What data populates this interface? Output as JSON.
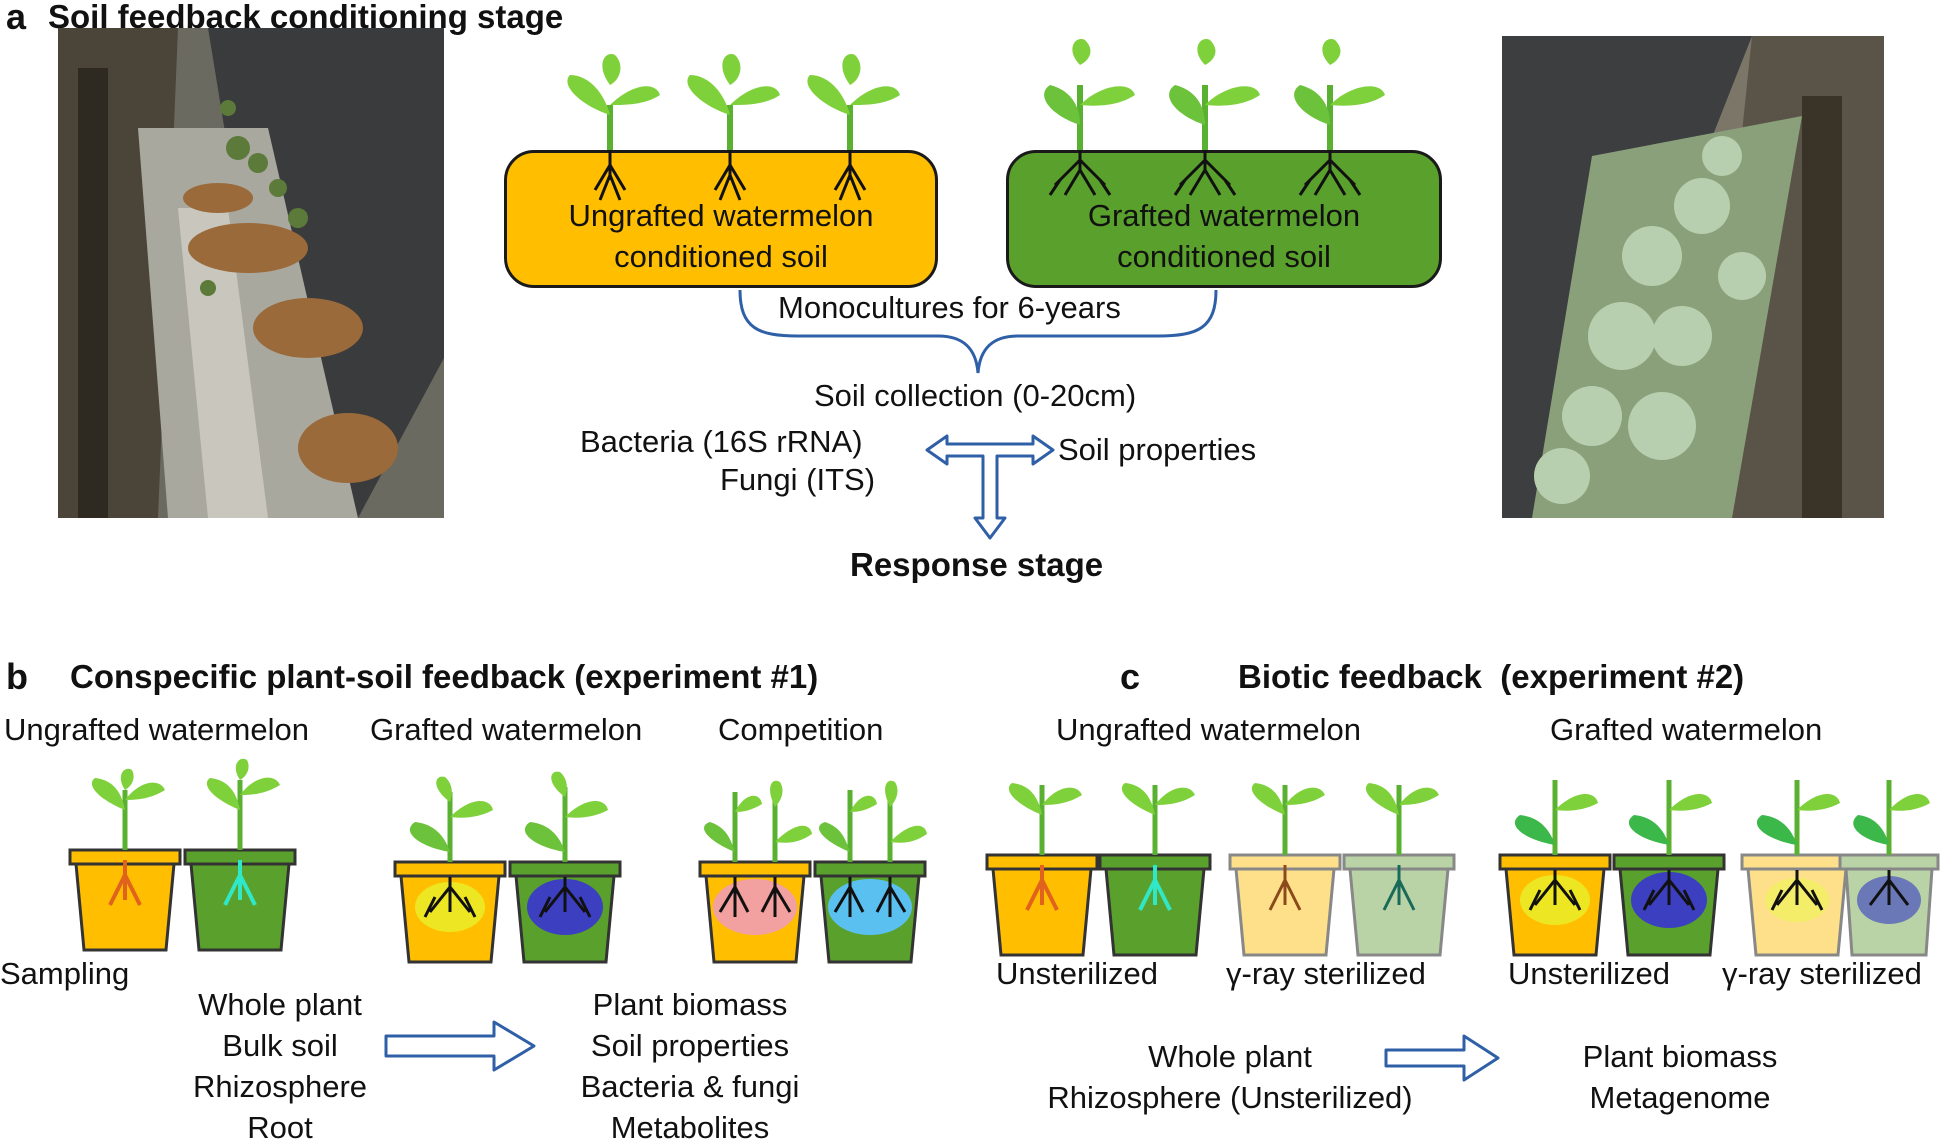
{
  "panel_a": {
    "letter": "a",
    "title": "Soil feedback conditioning stage",
    "box_left_line1": "Ungrafted watermelon",
    "box_left_line2": "conditioned soil",
    "box_right_line1": "Grafted watermelon",
    "box_right_line2": "conditioned soil",
    "monoculture": "Monocultures for 6-years",
    "soil_collection": "Soil collection (0-20cm)",
    "bacteria": "Bacteria (16S rRNA)",
    "fungi": "Fungi (ITS)",
    "soil_properties": "Soil properties",
    "response_stage": "Response stage"
  },
  "panel_b": {
    "letter": "b",
    "title": "Conspecific plant-soil feedback (experiment #1)",
    "groups": [
      "Ungrafted watermelon",
      "Grafted watermelon",
      "Competition"
    ],
    "sampling": "Sampling",
    "samples": [
      "Whole plant",
      "Bulk soil",
      "Rhizosphere",
      "Root"
    ],
    "measures": [
      "Plant biomass",
      "Soil properties",
      "Bacteria & fungi",
      "Metabolites"
    ]
  },
  "panel_c": {
    "letter": "c",
    "title": "Biotic feedback  (experiment #2)",
    "groups": [
      "Ungrafted watermelon",
      "Grafted watermelon"
    ],
    "treatments": [
      "Unsterilized",
      "γ-ray sterilized",
      "Unsterilized",
      "γ-ray sterilized"
    ],
    "samples": [
      "Whole plant",
      "Rhizosphere (Unsterilized)"
    ],
    "measures": [
      "Plant biomass",
      "Metagenome"
    ]
  },
  "colors": {
    "ungrafted_soil": "#ffbf00",
    "grafted_soil": "#5aa02c",
    "arrow_blue": "#2f5fa6",
    "leaf": "#7fd13b",
    "sterilized_orange": "#ffe08a",
    "sterilized_green": "#b9d3a6"
  }
}
